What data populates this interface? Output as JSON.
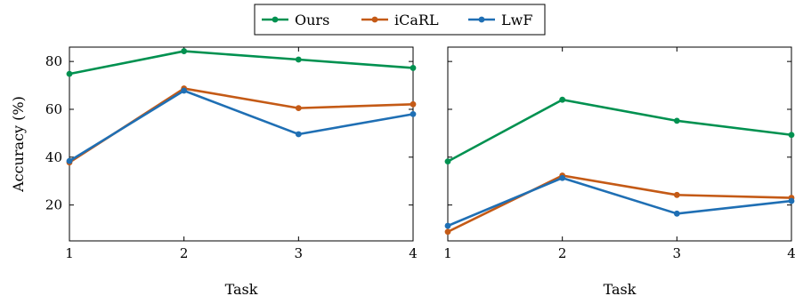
{
  "chart_data": [
    {
      "type": "line",
      "xlabel": "Task",
      "ylabel": "Accuracy (%)",
      "x": [
        1,
        2,
        3,
        4
      ],
      "xlim": [
        1,
        4
      ],
      "ylim": [
        5,
        86
      ],
      "yticks": [
        20,
        40,
        60,
        80
      ],
      "grid": false,
      "series": [
        {
          "name": "Ours",
          "color": "#009150",
          "values": [
            74.8,
            84.3,
            80.8,
            77.3
          ]
        },
        {
          "name": "iCaRL",
          "color": "#c45a16",
          "values": [
            37.8,
            68.7,
            60.5,
            62.1
          ]
        },
        {
          "name": "LwF",
          "color": "#1f6fb4",
          "values": [
            38.4,
            67.8,
            49.6,
            58.0
          ]
        }
      ]
    },
    {
      "type": "line",
      "xlabel": "Task",
      "ylabel": "",
      "x": [
        1,
        2,
        3,
        4
      ],
      "xlim": [
        1,
        4
      ],
      "ylim": [
        5,
        86
      ],
      "yticks": [
        20,
        40,
        60,
        80
      ],
      "grid": false,
      "series": [
        {
          "name": "Ours",
          "color": "#009150",
          "values": [
            38.2,
            64.0,
            55.2,
            49.3
          ]
        },
        {
          "name": "iCaRL",
          "color": "#c45a16",
          "values": [
            8.8,
            32.3,
            24.2,
            23.0
          ]
        },
        {
          "name": "LwF",
          "color": "#1f6fb4",
          "values": [
            11.3,
            31.3,
            16.4,
            21.7
          ]
        }
      ]
    }
  ],
  "legend": {
    "placement": "top-center",
    "entries": [
      "Ours",
      "iCaRL",
      "LwF"
    ]
  }
}
